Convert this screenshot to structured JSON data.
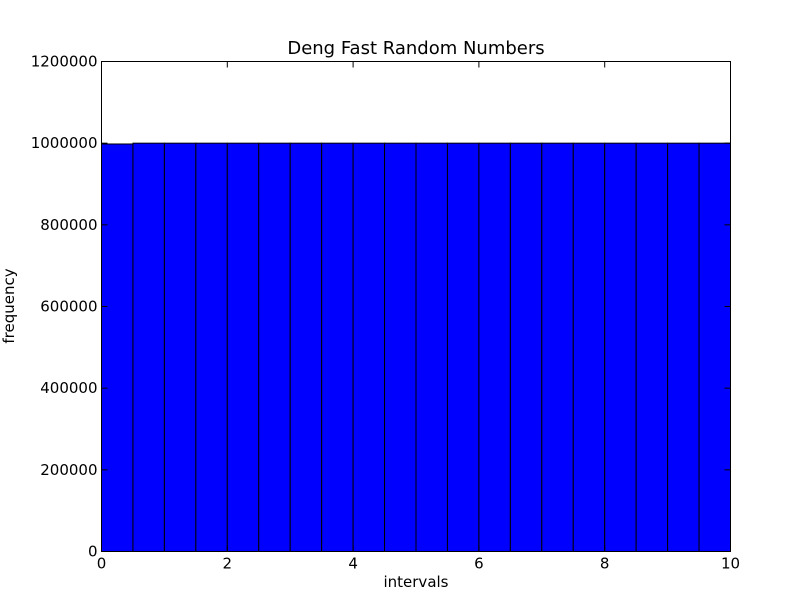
{
  "chart_data": {
    "type": "bar",
    "title": "Deng Fast Random Numbers",
    "xlabel": "intervals",
    "ylabel": "frequency",
    "xlim": [
      0,
      10
    ],
    "ylim": [
      0,
      1200000
    ],
    "bin_edges": [
      0,
      0.5,
      1,
      1.5,
      2,
      2.5,
      3,
      3.5,
      4,
      4.5,
      5,
      5.5,
      6,
      6.5,
      7,
      7.5,
      8,
      8.5,
      9,
      9.5,
      10
    ],
    "values": [
      998000,
      1000000,
      1000000,
      1000000,
      1000000,
      1000000,
      1000000,
      1000000,
      1000000,
      1000000,
      1000000,
      1000000,
      1000000,
      1000000,
      1000000,
      1000000,
      1000000,
      1000000,
      1000000,
      1000000
    ],
    "x_ticks": [
      0,
      2,
      4,
      6,
      8,
      10
    ],
    "x_tick_labels": [
      "0",
      "2",
      "4",
      "6",
      "8",
      "10"
    ],
    "y_ticks": [
      0,
      200000,
      400000,
      600000,
      800000,
      1000000,
      1200000
    ],
    "y_tick_labels": [
      "0",
      "200000",
      "400000",
      "600000",
      "800000",
      "1000000",
      "1200000"
    ],
    "bar_color": "#0000ff",
    "grid": false,
    "legend": "none"
  }
}
